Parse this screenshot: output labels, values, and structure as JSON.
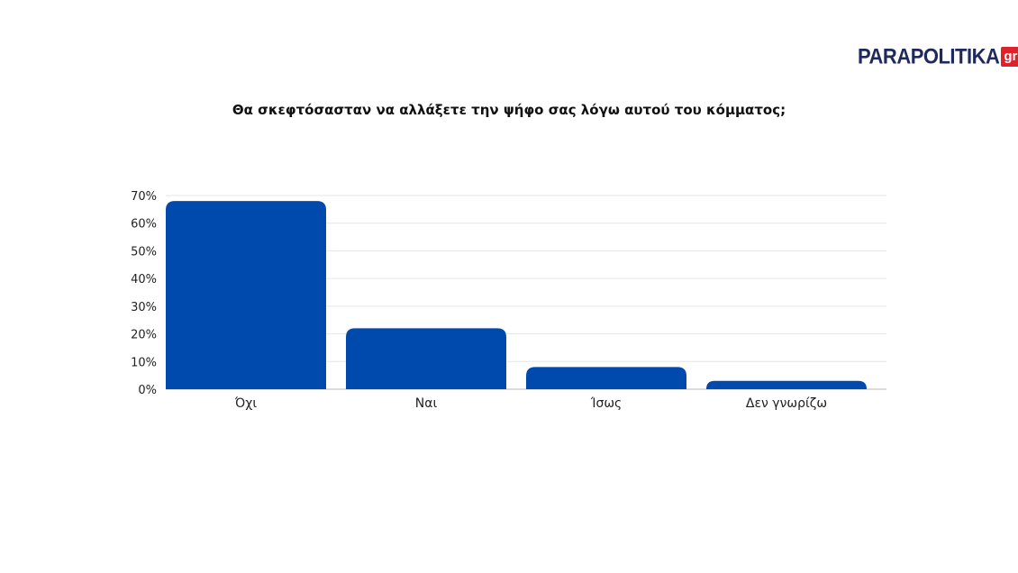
{
  "logo": {
    "word": "PARAPOLITIKA",
    "badge": "gr"
  },
  "chart_data": {
    "type": "bar",
    "title": "Θα σκεφτόσασταν να αλλάξετε την ψήφο σας λόγω αυτού του κόμματος;",
    "categories": [
      "Όχι",
      "Ναι",
      "Ίσως",
      "Δεν γνωρίζω"
    ],
    "values": [
      68,
      22,
      8,
      3
    ],
    "unit": "%",
    "yticks": [
      "0%",
      "10%",
      "20%",
      "30%",
      "40%",
      "50%",
      "60%",
      "70%"
    ],
    "ylim": [
      0,
      70
    ],
    "grid": true,
    "legend": "none",
    "colors": {
      "bar": "#004aad",
      "grid": "#e6e6e6",
      "axis": "#bbbbbb"
    }
  }
}
